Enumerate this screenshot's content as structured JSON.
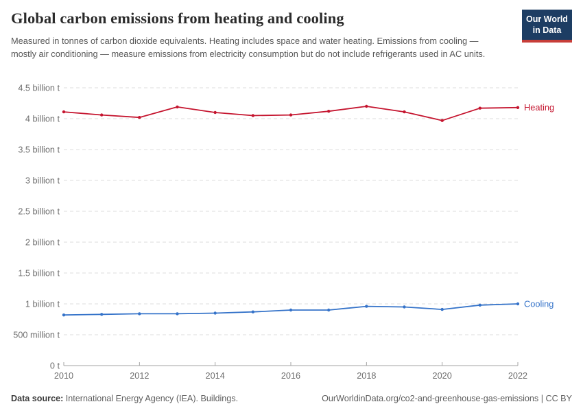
{
  "header": {
    "title": "Global carbon emissions from heating and cooling",
    "subtitle": "Measured in tonnes of carbon dioxide equivalents. Heating includes space and water heating. Emissions from cooling — mostly air conditioning — measure emissions from electricity consumption but do not include refrigerants used in AC units.",
    "logo": {
      "line1": "Our World",
      "line2": "in Data",
      "bg_color": "#1d3d63",
      "stripe_color": "#c73e39"
    }
  },
  "chart_data": {
    "type": "line",
    "title": "Global carbon emissions from heating and cooling",
    "x": [
      2010,
      2011,
      2012,
      2013,
      2014,
      2015,
      2016,
      2017,
      2018,
      2019,
      2020,
      2021,
      2022
    ],
    "series": [
      {
        "name": "Heating",
        "color": "#c5152f",
        "unit": "billion t",
        "values": [
          4.11,
          4.06,
          4.02,
          4.19,
          4.1,
          4.05,
          4.06,
          4.12,
          4.2,
          4.11,
          3.97,
          4.17,
          4.18
        ]
      },
      {
        "name": "Cooling",
        "color": "#3573c9",
        "unit": "billion t",
        "values": [
          0.82,
          0.83,
          0.84,
          0.84,
          0.85,
          0.87,
          0.9,
          0.9,
          0.96,
          0.95,
          0.91,
          0.98,
          1.0
        ]
      }
    ],
    "ylim": [
      0,
      4.5
    ],
    "y_ticks": [
      {
        "value": 0,
        "label": "0 t"
      },
      {
        "value": 0.5,
        "label": "500 million t"
      },
      {
        "value": 1,
        "label": "1 billion t"
      },
      {
        "value": 1.5,
        "label": "1.5 billion t"
      },
      {
        "value": 2,
        "label": "2 billion t"
      },
      {
        "value": 2.5,
        "label": "2.5 billion t"
      },
      {
        "value": 3,
        "label": "3 billion t"
      },
      {
        "value": 3.5,
        "label": "3.5 billion t"
      },
      {
        "value": 4,
        "label": "4 billion t"
      },
      {
        "value": 4.5,
        "label": "4.5 billion t"
      }
    ],
    "x_ticks": [
      2010,
      2012,
      2014,
      2016,
      2018,
      2020,
      2022
    ],
    "grid": true,
    "grid_color": "#dcdcdc",
    "axis_color": "#a3a3a3",
    "tick_label_color": "#6e6e6e",
    "legend_position": "end-of-line"
  },
  "footer": {
    "source_label": "Data source:",
    "source_text": " International Energy Agency (IEA). Buildings.",
    "credit": "OurWorldinData.org/co2-and-greenhouse-gas-emissions | CC BY"
  }
}
